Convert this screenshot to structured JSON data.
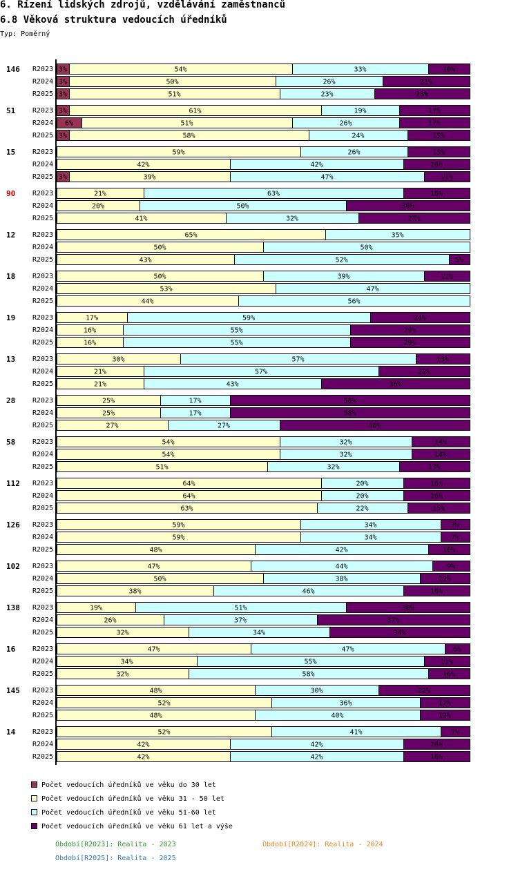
{
  "title": "6. Řízení lidských zdrojů, vzdělávání zaměstnanců",
  "subtitle": "6.8 Věková struktura vedoucích úředníků",
  "type_label": "Typ:",
  "type_value": "Poměrný",
  "legend": [
    {
      "label": "Počet vedoucích úředníků ve věku do 30 let",
      "color": "#993355"
    },
    {
      "label": "Počet vedoucích úředníků ve věku 31 - 50 let",
      "color": "#ffffcc"
    },
    {
      "label": "Počet vedoucích úředníků ve věku 51-60 let",
      "color": "#ccffff"
    },
    {
      "label": "Počet vedoucích úředníků ve věku 61 let a výše",
      "color": "#660066"
    }
  ],
  "periods": [
    {
      "text": "Období[R2023]: Realita - 2023",
      "color": "#339933"
    },
    {
      "text": "Období[R2024]: Realita - 2024",
      "color": "#ee8822"
    },
    {
      "text": "Období[R2025]: Realita - 2025",
      "color": "#3377aa"
    }
  ],
  "chart_data": {
    "type": "bar",
    "orientation": "horizontal-stacked-percent",
    "xlim": [
      0,
      100
    ],
    "series_names": [
      "do 30 let",
      "31 - 50 let",
      "51-60 let",
      "61 let a výše"
    ],
    "colors": [
      "#993355",
      "#ffffcc",
      "#ccffff",
      "#660066"
    ],
    "groups": [
      {
        "label": "146",
        "highlight": false,
        "rows": [
          {
            "period": "R2023",
            "values": [
              3,
              54,
              33,
              10
            ]
          },
          {
            "period": "R2024",
            "values": [
              3,
              50,
              26,
              21
            ]
          },
          {
            "period": "R2025",
            "values": [
              3,
              51,
              23,
              23
            ]
          }
        ]
      },
      {
        "label": "51",
        "highlight": false,
        "rows": [
          {
            "period": "R2023",
            "values": [
              3,
              61,
              19,
              17
            ]
          },
          {
            "period": "R2024",
            "values": [
              6,
              51,
              26,
              17
            ]
          },
          {
            "period": "R2025",
            "values": [
              3,
              58,
              24,
              15
            ]
          }
        ]
      },
      {
        "label": "15",
        "highlight": false,
        "rows": [
          {
            "period": "R2023",
            "values": [
              0,
              59,
              26,
              15
            ]
          },
          {
            "period": "R2024",
            "values": [
              0,
              42,
              42,
              16
            ]
          },
          {
            "period": "R2025",
            "values": [
              3,
              39,
              47,
              11
            ]
          }
        ]
      },
      {
        "label": "90",
        "highlight": true,
        "rows": [
          {
            "period": "R2023",
            "values": [
              0,
              21,
              63,
              16
            ]
          },
          {
            "period": "R2024",
            "values": [
              0,
              20,
              50,
              30
            ]
          },
          {
            "period": "R2025",
            "values": [
              0,
              41,
              32,
              27
            ]
          }
        ]
      },
      {
        "label": "12",
        "highlight": false,
        "rows": [
          {
            "period": "R2023",
            "values": [
              0,
              65,
              35,
              0
            ]
          },
          {
            "period": "R2024",
            "values": [
              0,
              50,
              50,
              0
            ]
          },
          {
            "period": "R2025",
            "values": [
              0,
              43,
              52,
              5
            ]
          }
        ]
      },
      {
        "label": "18",
        "highlight": false,
        "rows": [
          {
            "period": "R2023",
            "values": [
              0,
              50,
              39,
              11
            ]
          },
          {
            "period": "R2024",
            "values": [
              0,
              53,
              47,
              0
            ]
          },
          {
            "period": "R2025",
            "values": [
              0,
              44,
              56,
              0
            ]
          }
        ]
      },
      {
        "label": "19",
        "highlight": false,
        "rows": [
          {
            "period": "R2023",
            "values": [
              0,
              17,
              59,
              24
            ]
          },
          {
            "period": "R2024",
            "values": [
              0,
              16,
              55,
              29
            ]
          },
          {
            "period": "R2025",
            "values": [
              0,
              16,
              55,
              29
            ]
          }
        ]
      },
      {
        "label": "13",
        "highlight": false,
        "rows": [
          {
            "period": "R2023",
            "values": [
              0,
              30,
              57,
              13
            ]
          },
          {
            "period": "R2024",
            "values": [
              0,
              21,
              57,
              22
            ]
          },
          {
            "period": "R2025",
            "values": [
              0,
              21,
              43,
              36
            ]
          }
        ]
      },
      {
        "label": "28",
        "highlight": false,
        "rows": [
          {
            "period": "R2023",
            "values": [
              0,
              25,
              17,
              58
            ]
          },
          {
            "period": "R2024",
            "values": [
              0,
              25,
              17,
              58
            ]
          },
          {
            "period": "R2025",
            "values": [
              0,
              27,
              27,
              46
            ]
          }
        ]
      },
      {
        "label": "58",
        "highlight": false,
        "rows": [
          {
            "period": "R2023",
            "values": [
              0,
              54,
              32,
              14
            ]
          },
          {
            "period": "R2024",
            "values": [
              0,
              54,
              32,
              14
            ]
          },
          {
            "period": "R2025",
            "values": [
              0,
              51,
              32,
              17
            ]
          }
        ]
      },
      {
        "label": "112",
        "highlight": false,
        "rows": [
          {
            "period": "R2023",
            "values": [
              0,
              64,
              20,
              16
            ]
          },
          {
            "period": "R2024",
            "values": [
              0,
              64,
              20,
              16
            ]
          },
          {
            "period": "R2025",
            "values": [
              0,
              63,
              22,
              15
            ]
          }
        ]
      },
      {
        "label": "126",
        "highlight": false,
        "rows": [
          {
            "period": "R2023",
            "values": [
              0,
              59,
              34,
              7
            ]
          },
          {
            "period": "R2024",
            "values": [
              0,
              59,
              34,
              7
            ]
          },
          {
            "period": "R2025",
            "values": [
              0,
              48,
              42,
              10
            ]
          }
        ]
      },
      {
        "label": "102",
        "highlight": false,
        "rows": [
          {
            "period": "R2023",
            "values": [
              0,
              47,
              44,
              9
            ]
          },
          {
            "period": "R2024",
            "values": [
              0,
              50,
              38,
              12
            ]
          },
          {
            "period": "R2025",
            "values": [
              0,
              38,
              46,
              16
            ]
          }
        ]
      },
      {
        "label": "138",
        "highlight": false,
        "rows": [
          {
            "period": "R2023",
            "values": [
              0,
              19,
              51,
              30
            ]
          },
          {
            "period": "R2024",
            "values": [
              0,
              26,
              37,
              37
            ]
          },
          {
            "period": "R2025",
            "values": [
              0,
              32,
              34,
              34
            ]
          }
        ]
      },
      {
        "label": "16",
        "highlight": false,
        "rows": [
          {
            "period": "R2023",
            "values": [
              0,
              47,
              47,
              6
            ]
          },
          {
            "period": "R2024",
            "values": [
              0,
              34,
              55,
              11
            ]
          },
          {
            "period": "R2025",
            "values": [
              0,
              32,
              58,
              10
            ]
          }
        ]
      },
      {
        "label": "145",
        "highlight": false,
        "rows": [
          {
            "period": "R2023",
            "values": [
              0,
              48,
              30,
              22
            ]
          },
          {
            "period": "R2024",
            "values": [
              0,
              52,
              36,
              12
            ]
          },
          {
            "period": "R2025",
            "values": [
              0,
              48,
              40,
              12
            ]
          }
        ]
      },
      {
        "label": "14",
        "highlight": false,
        "rows": [
          {
            "period": "R2023",
            "values": [
              0,
              52,
              41,
              7
            ]
          },
          {
            "period": "R2024",
            "values": [
              0,
              42,
              42,
              16
            ]
          },
          {
            "period": "R2025",
            "values": [
              0,
              42,
              42,
              16
            ]
          }
        ]
      }
    ]
  }
}
